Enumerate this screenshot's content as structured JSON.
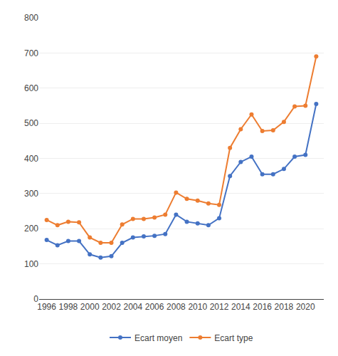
{
  "chart_data": {
    "type": "line",
    "x": [
      1996,
      1997,
      1998,
      1999,
      2000,
      2001,
      2002,
      2003,
      2004,
      2005,
      2006,
      2007,
      2008,
      2009,
      2010,
      2011,
      2012,
      2013,
      2014,
      2015,
      2016,
      2017,
      2018,
      2019,
      2020,
      2021
    ],
    "series": [
      {
        "name": "Ecart moyen",
        "color": "#4472C4",
        "marker": "circle",
        "values": [
          168,
          153,
          165,
          165,
          127,
          118,
          122,
          160,
          175,
          178,
          180,
          185,
          240,
          220,
          215,
          210,
          230,
          350,
          390,
          405,
          355,
          355,
          370,
          405,
          410,
          555
        ]
      },
      {
        "name": "Ecart type",
        "color": "#ED7D31",
        "marker": "circle",
        "values": [
          225,
          210,
          220,
          218,
          175,
          160,
          160,
          212,
          228,
          228,
          232,
          240,
          303,
          285,
          280,
          272,
          268,
          430,
          483,
          525,
          478,
          480,
          504,
          548,
          550,
          690
        ]
      }
    ],
    "xlim": [
      1995.3,
      2021.7
    ],
    "xticks": [
      1996,
      1998,
      2000,
      2002,
      2004,
      2006,
      2008,
      2010,
      2012,
      2014,
      2016,
      2018,
      2020
    ],
    "ylim": [
      0,
      800
    ],
    "yticks": [
      0,
      100,
      200,
      300,
      400,
      500,
      600,
      700,
      800
    ],
    "grid": "y",
    "legend": "bottom"
  }
}
